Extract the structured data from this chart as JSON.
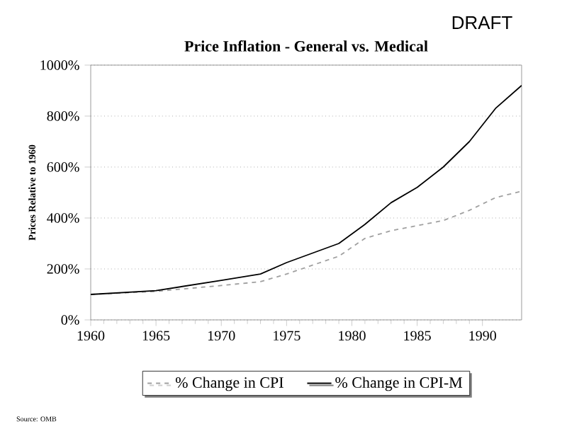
{
  "chart_data": {
    "type": "line",
    "title": "Price Inflation - General vs. Medical",
    "ylabel": "Prices Relative to 1960",
    "annotations": [
      "DRAFT",
      "Source: OMB"
    ],
    "x": [
      1960,
      1965,
      1970,
      1973,
      1975,
      1979,
      1981,
      1983,
      1985,
      1987,
      1989,
      1991,
      1993
    ],
    "series": [
      {
        "name": "% Change in CPI",
        "color": "#a0a0a0",
        "line_style": "dashed",
        "values": [
          100,
          112,
          135,
          150,
          180,
          250,
          320,
          350,
          370,
          390,
          430,
          480,
          505
        ]
      },
      {
        "name": "% Change in CPI-M",
        "color": "#000000",
        "line_style": "solid",
        "values": [
          100,
          115,
          155,
          180,
          225,
          300,
          375,
          460,
          520,
          600,
          700,
          830,
          920
        ]
      }
    ],
    "xlim": [
      1960,
      1993
    ],
    "xticks": [
      1960,
      1965,
      1970,
      1975,
      1980,
      1985,
      1990
    ],
    "ylim": [
      0,
      1000
    ],
    "yticks": [
      {
        "value": 0,
        "label": "0%"
      },
      {
        "value": 200,
        "label": "200%"
      },
      {
        "value": 400,
        "label": "400%"
      },
      {
        "value": 600,
        "label": "600%"
      },
      {
        "value": 800,
        "label": "800%"
      },
      {
        "value": 1000,
        "label": "1000%"
      }
    ],
    "grid": "y",
    "legend": "bottom",
    "marker": "none"
  }
}
